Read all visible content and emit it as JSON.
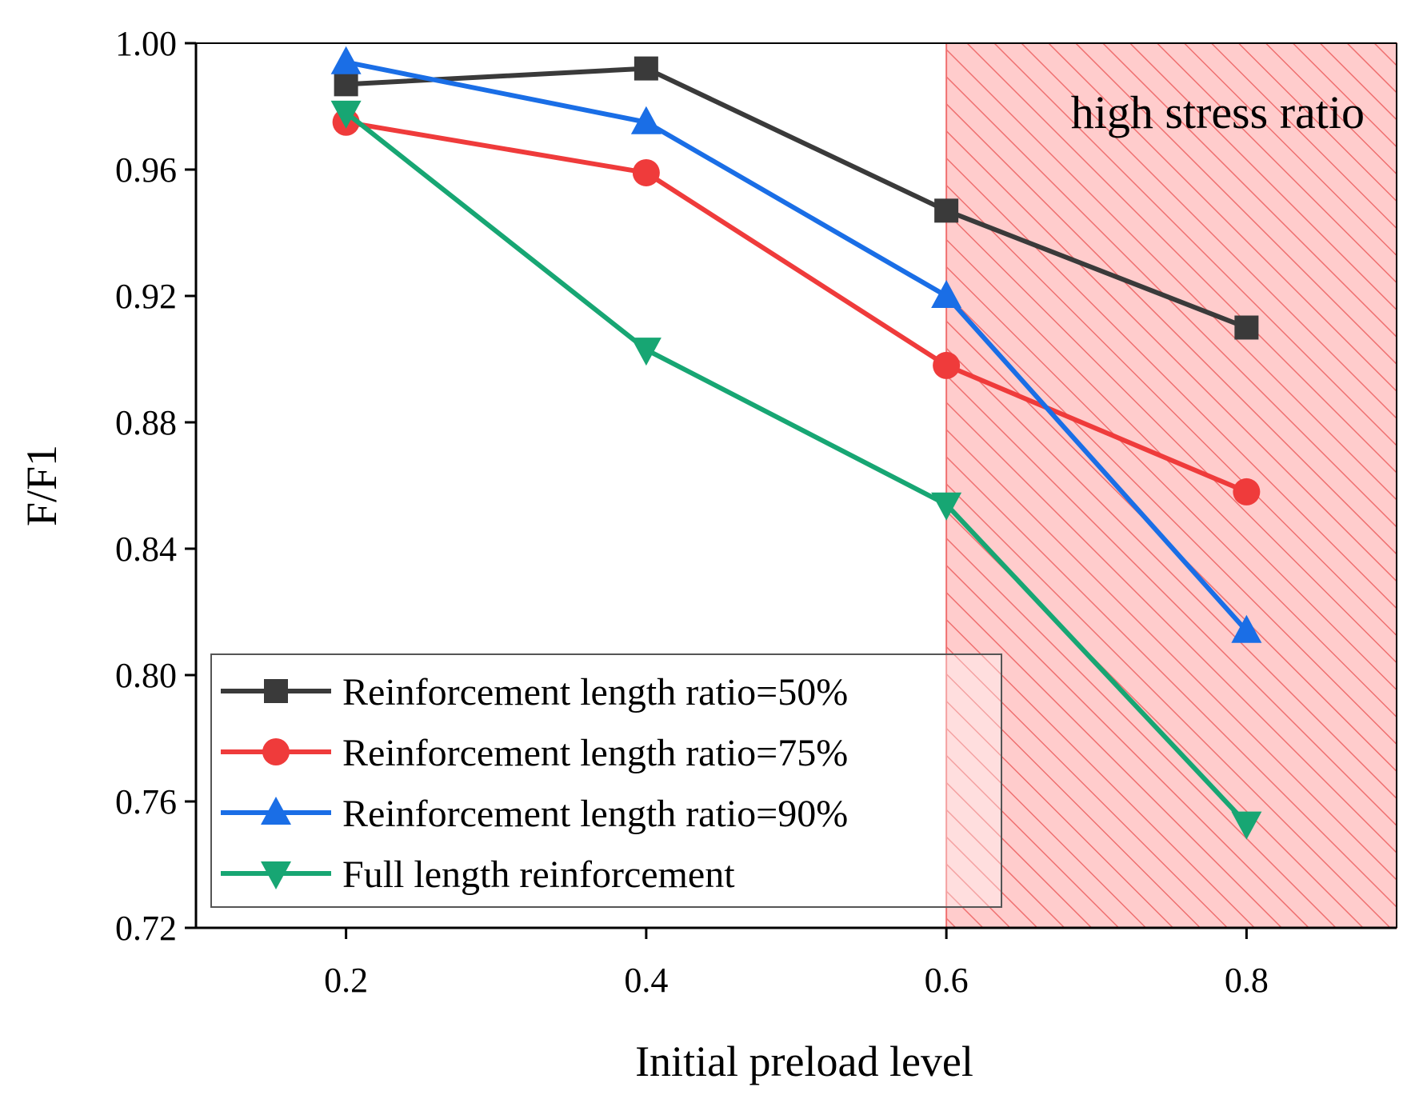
{
  "chart_data": {
    "type": "line",
    "title": "",
    "xlabel": "Initial preload level",
    "ylabel": "F/F1",
    "xlim": [
      0.1,
      0.9
    ],
    "ylim": [
      0.72,
      1.0
    ],
    "x_ticks": [
      "0.2",
      "0.4",
      "0.6",
      "0.8"
    ],
    "y_ticks": [
      "0.72",
      "0.76",
      "0.80",
      "0.84",
      "0.88",
      "0.92",
      "0.96",
      "1.00"
    ],
    "grid": false,
    "legend_position": "bottom-left",
    "x": [
      0.2,
      0.4,
      0.6,
      0.8
    ],
    "series": [
      {
        "name": "Reinforcement length ratio=50%",
        "marker": "square",
        "color": "#3a3a3a",
        "values": [
          0.987,
          0.992,
          0.947,
          0.91
        ]
      },
      {
        "name": "Reinforcement length ratio=75%",
        "marker": "circle",
        "color": "#ef3b3b",
        "values": [
          0.975,
          0.959,
          0.898,
          0.858
        ]
      },
      {
        "name": "Reinforcement length ratio=90%",
        "marker": "triangle-up",
        "color": "#1a6ee6",
        "values": [
          0.994,
          0.975,
          0.92,
          0.814
        ]
      },
      {
        "name": "Full length reinforcement",
        "marker": "triangle-down",
        "color": "#17a673",
        "values": [
          0.978,
          0.903,
          0.854,
          0.753
        ]
      }
    ],
    "shaded_region": {
      "label": "high stress ratio",
      "x_from": 0.6,
      "x_to": 0.9,
      "fill": "#ffcccc",
      "hatch": "#ef7070"
    }
  }
}
